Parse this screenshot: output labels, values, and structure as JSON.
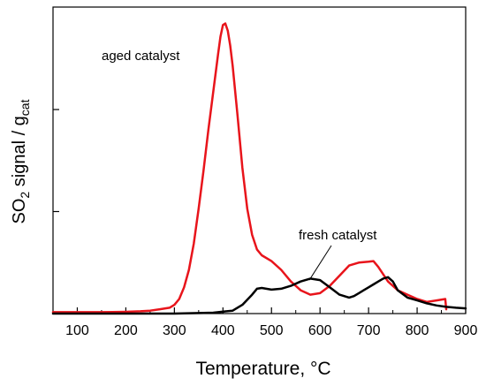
{
  "chart_data": {
    "type": "line",
    "xlabel": "Temperature, °C",
    "ylabel": {
      "main": "SO",
      "sub": "2",
      "mid": " signal / g",
      "sub2": "cat"
    },
    "xlim": [
      50,
      900
    ],
    "ylim": [
      0,
      100
    ],
    "xticks": [
      100,
      200,
      300,
      400,
      500,
      600,
      700,
      800,
      900
    ],
    "y_minor_ticks": [
      35,
      70
    ],
    "grid": false,
    "legend": "none",
    "annotations": [
      {
        "text": "aged catalyst",
        "series": "aged"
      },
      {
        "text": "fresh catalyst",
        "series": "fresh"
      }
    ],
    "series": [
      {
        "id": "aged",
        "color": "#e8141b",
        "x": [
          50,
          100,
          150,
          200,
          230,
          250,
          270,
          290,
          300,
          310,
          320,
          330,
          340,
          350,
          360,
          370,
          380,
          390,
          395,
          400,
          405,
          410,
          415,
          420,
          430,
          440,
          450,
          460,
          470,
          480,
          500,
          520,
          540,
          560,
          580,
          600,
          620,
          640,
          660,
          680,
          700,
          710,
          720,
          740,
          760,
          780,
          800,
          820,
          840,
          858,
          860
        ],
        "y": [
          0.5,
          0.5,
          0.5,
          0.6,
          0.8,
          1.0,
          1.5,
          2.0,
          3.0,
          5.0,
          9.0,
          15.0,
          24.0,
          36.0,
          49.0,
          63.0,
          76.0,
          89.0,
          95.0,
          99.0,
          99.5,
          97.0,
          92.0,
          85.0,
          68.0,
          50.0,
          36.0,
          27.0,
          22.0,
          20.0,
          18.0,
          15.0,
          11.0,
          8.0,
          6.5,
          7.0,
          9.5,
          13.0,
          16.5,
          17.5,
          17.8,
          18.0,
          16.0,
          11.0,
          8.0,
          6.5,
          5.0,
          4.0,
          4.5,
          5.0,
          1.5
        ]
      },
      {
        "id": "fresh",
        "color": "#000000",
        "x": [
          50,
          200,
          300,
          380,
          420,
          440,
          460,
          470,
          480,
          500,
          520,
          540,
          560,
          580,
          600,
          620,
          640,
          660,
          670,
          680,
          690,
          700,
          710,
          720,
          730,
          740,
          750,
          760,
          780,
          800,
          820,
          840,
          860,
          880,
          900
        ],
        "y": [
          0,
          0,
          0,
          0.3,
          1.0,
          3.0,
          6.5,
          8.5,
          8.8,
          8.2,
          8.5,
          9.5,
          11.0,
          12.0,
          11.5,
          9.0,
          6.5,
          5.5,
          6.0,
          7.0,
          8.0,
          9.0,
          10.0,
          11.0,
          12.0,
          12.5,
          11.0,
          8.0,
          5.5,
          4.5,
          3.5,
          2.8,
          2.3,
          2.0,
          1.8
        ]
      }
    ]
  }
}
